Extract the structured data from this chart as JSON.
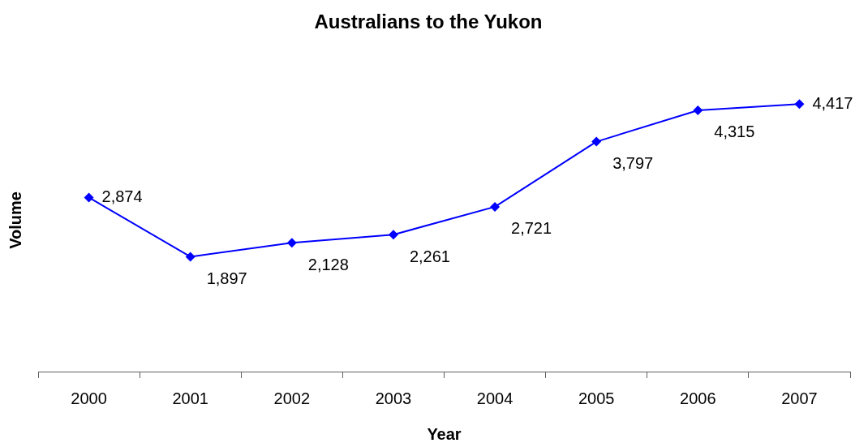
{
  "chart_data": {
    "type": "line",
    "title": "Australians to the Yukon",
    "xlabel": "Year",
    "ylabel": "Volume",
    "categories": [
      "2000",
      "2001",
      "2002",
      "2003",
      "2004",
      "2005",
      "2006",
      "2007"
    ],
    "series": [
      {
        "color": "#0000ff",
        "values": [
          2874,
          1897,
          2128,
          2261,
          2721,
          3797,
          4315,
          4417
        ],
        "value_labels": [
          "2,874",
          "1,897",
          "2,128",
          "2,261",
          "2,721",
          "3,797",
          "4,315",
          "4,417"
        ]
      }
    ],
    "marker": "diamond",
    "line_style": "solid"
  }
}
